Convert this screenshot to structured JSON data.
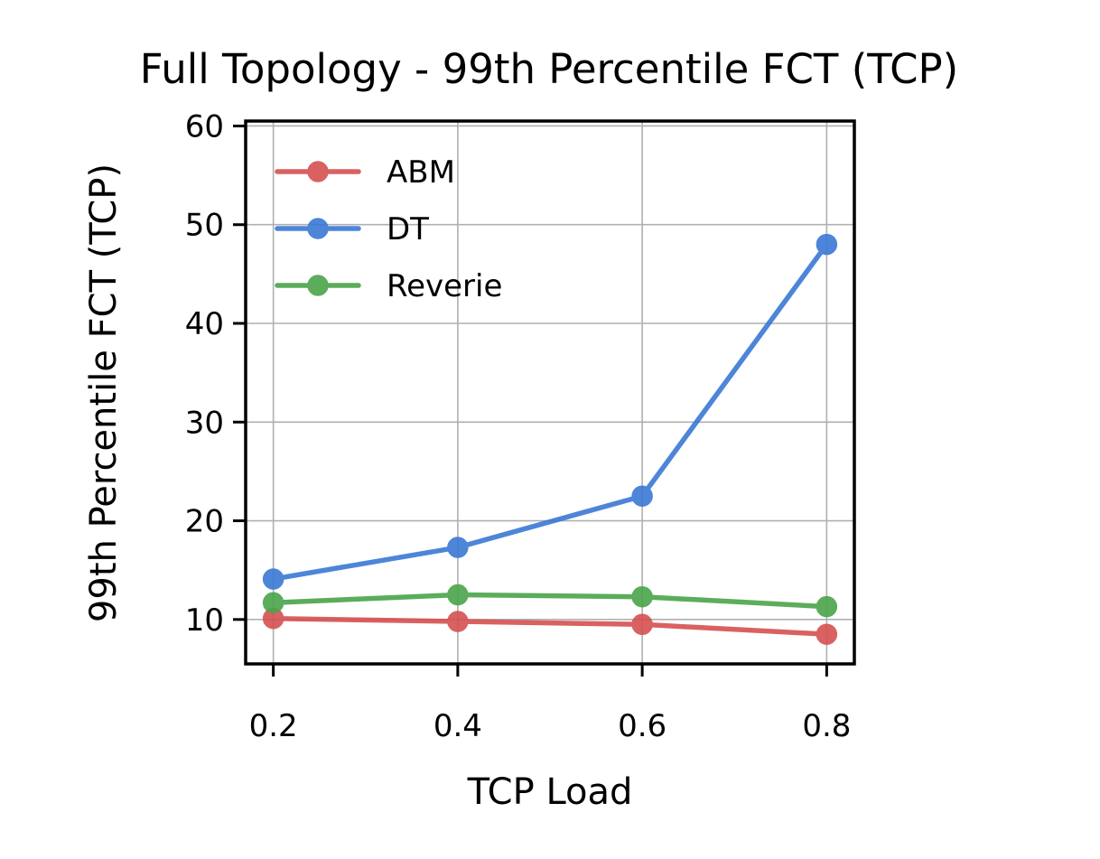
{
  "chart_data": {
    "type": "line",
    "title": "Full Topology - 99th Percentile FCT (TCP)",
    "xlabel": "TCP Load",
    "ylabel": "99th Percentile FCT (TCP)",
    "x": [
      0.2,
      0.4,
      0.6,
      0.8
    ],
    "x_ticks": [
      "0.2",
      "0.4",
      "0.6",
      "0.8"
    ],
    "xlim": [
      0.17,
      0.83
    ],
    "y_ticks": [
      "10",
      "20",
      "30",
      "40",
      "50",
      "60"
    ],
    "ylim": [
      5.5,
      60.5
    ],
    "grid": true,
    "legend_position": "top-left",
    "series": [
      {
        "name": "ABM",
        "color": "#d65050",
        "values": [
          10.1,
          9.8,
          9.5,
          8.5
        ]
      },
      {
        "name": "DT",
        "color": "#3a78d5",
        "values": [
          14.1,
          17.3,
          22.5,
          48.0
        ]
      },
      {
        "name": "Reverie",
        "color": "#4aa44a",
        "values": [
          11.7,
          12.5,
          12.3,
          11.3
        ]
      }
    ]
  }
}
